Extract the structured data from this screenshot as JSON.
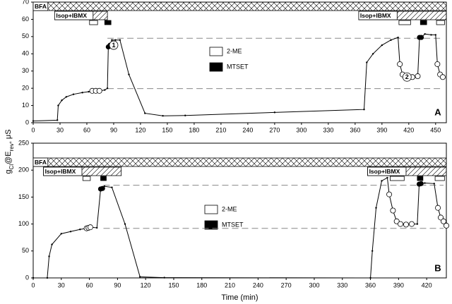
{
  "chart_data": [
    {
      "type": "line",
      "panel_label": "A",
      "ylabel_parts": [
        "g",
        "Cl",
        "@E",
        "rev",
        ", μS"
      ],
      "xlim": [
        0,
        462
      ],
      "ylim": [
        0,
        70
      ],
      "xticks": [
        0,
        30,
        60,
        90,
        120,
        150,
        180,
        210,
        240,
        270,
        300,
        330,
        360,
        390,
        420,
        450
      ],
      "yticks": [
        0,
        10,
        20,
        30,
        40,
        50,
        60,
        70
      ],
      "series": [
        {
          "color": "#000000",
          "x": [
            0,
            27,
            28,
            32,
            37,
            45,
            55,
            62,
            66,
            70,
            74,
            80,
            83,
            84,
            86,
            88,
            92,
            97,
            107,
            125,
            145,
            170,
            270,
            370,
            373,
            380,
            390,
            400,
            408,
            410,
            413,
            418,
            424,
            430,
            432,
            434,
            438,
            445,
            450,
            452,
            455,
            458
          ],
          "values": [
            1,
            1.5,
            10,
            13,
            15,
            16.5,
            17.5,
            18,
            18.5,
            18.5,
            18.5,
            19,
            20,
            44,
            45,
            48,
            48,
            48,
            28,
            5.5,
            4,
            4.2,
            6,
            7.7,
            35,
            40,
            45,
            48,
            49.5,
            34,
            28,
            26.5,
            26.5,
            27,
            49.5,
            49.5,
            51.5,
            51,
            51,
            34,
            28,
            26.5
          ],
          "marker_styles": [
            "dot",
            "dot",
            "dot",
            "dot",
            "dot",
            "dot",
            "dot",
            "dot",
            "open",
            "open",
            "open",
            "dot",
            "dot",
            "filled",
            "filled",
            "dot",
            "dot",
            "dot",
            "dot",
            "dot",
            "dot",
            "dot",
            "dot",
            "dot",
            "dot",
            "dot",
            "dot",
            "dot",
            "dot",
            "open",
            "open",
            "open",
            "open",
            "open",
            "filled",
            "filled",
            "dot",
            "dot",
            "dot",
            "open",
            "open",
            "open"
          ]
        }
      ],
      "hlines": [
        {
          "y": 49,
          "x": [
            83,
            455
          ]
        },
        {
          "y": 19.8,
          "x": [
            83,
            455
          ]
        }
      ],
      "annotations": [
        {
          "text": "1",
          "x": 90,
          "y": 45
        },
        {
          "text": "2",
          "x": 418,
          "y": 26.5
        }
      ],
      "treatments": [
        {
          "name": "BFA",
          "style": "crosshatch",
          "intervals": [
            [
              0,
              462
            ]
          ]
        },
        {
          "name": "Isop+IBMX",
          "style": "hatch",
          "intervals": [
            [
              24,
              83
            ],
            [
              364,
              462
            ]
          ]
        },
        {
          "name": "2-ME",
          "style": "open",
          "intervals": [
            [
              63,
              72
            ],
            [
              409,
              422
            ],
            [
              451,
              460
            ]
          ]
        },
        {
          "name": "MTSET",
          "style": "filled",
          "intervals": [
            [
              80,
              87
            ],
            [
              433,
              440
            ]
          ]
        }
      ]
    },
    {
      "type": "line",
      "panel_label": "B",
      "xlabel": "Time (min)",
      "xlim": [
        0,
        441
      ],
      "ylim": [
        0,
        250
      ],
      "xticks": [
        0,
        30,
        60,
        90,
        120,
        150,
        180,
        210,
        240,
        270,
        300,
        330,
        360,
        390,
        420
      ],
      "yticks": [
        0,
        50,
        100,
        150,
        200,
        250
      ],
      "series": [
        {
          "color": "#000000",
          "x": [
            0,
            15,
            17,
            20,
            30,
            40,
            50,
            57,
            59,
            61,
            68,
            72,
            74,
            76,
            84,
            98,
            114,
            140,
            360,
            362,
            366,
            372,
            378,
            380,
            384,
            388,
            392,
            398,
            404,
            410,
            412,
            414,
            418,
            428,
            432,
            435,
            438,
            441
          ],
          "values": [
            0,
            0,
            40,
            62,
            82,
            86,
            90,
            92,
            93,
            94,
            93,
            165,
            166,
            170,
            168,
            100,
            2,
            0.5,
            0,
            50,
            130,
            180,
            186,
            155,
            125,
            105,
            100,
            99,
            100,
            100,
            174,
            175,
            176,
            175,
            130,
            112,
            105,
            97
          ],
          "marker_styles": [
            "dot",
            "dot",
            "dot",
            "dot",
            "dot",
            "dot",
            "dot",
            "open",
            "open",
            "open",
            "dot",
            "filled",
            "filled",
            "dot",
            "dot",
            "dot",
            "dot",
            "dot",
            "dot",
            "dot",
            "dot",
            "dot",
            "dot",
            "open",
            "open",
            "open",
            "open",
            "open",
            "open",
            "dot",
            "filled",
            "filled",
            "dot",
            "dot",
            "open",
            "open",
            "open",
            "open"
          ]
        }
      ],
      "hlines": [
        {
          "y": 172,
          "x": [
            75,
            438
          ]
        },
        {
          "y": 92,
          "x": [
            75,
            438
          ]
        }
      ],
      "annotations": [],
      "treatments": [
        {
          "name": "BFA",
          "style": "crosshatch",
          "intervals": [
            [
              0,
              441
            ]
          ]
        },
        {
          "name": "Isop+IBMX",
          "style": "hatch",
          "intervals": [
            [
              11,
              94
            ],
            [
              357,
              441
            ]
          ]
        },
        {
          "name": "2-ME",
          "style": "open",
          "intervals": [
            [
              53,
              61
            ],
            [
              381,
              396
            ],
            [
              429,
              439
            ]
          ]
        },
        {
          "name": "MTSET",
          "style": "filled",
          "intervals": [
            [
              72,
              78
            ],
            [
              410,
              416
            ]
          ]
        }
      ]
    }
  ]
}
